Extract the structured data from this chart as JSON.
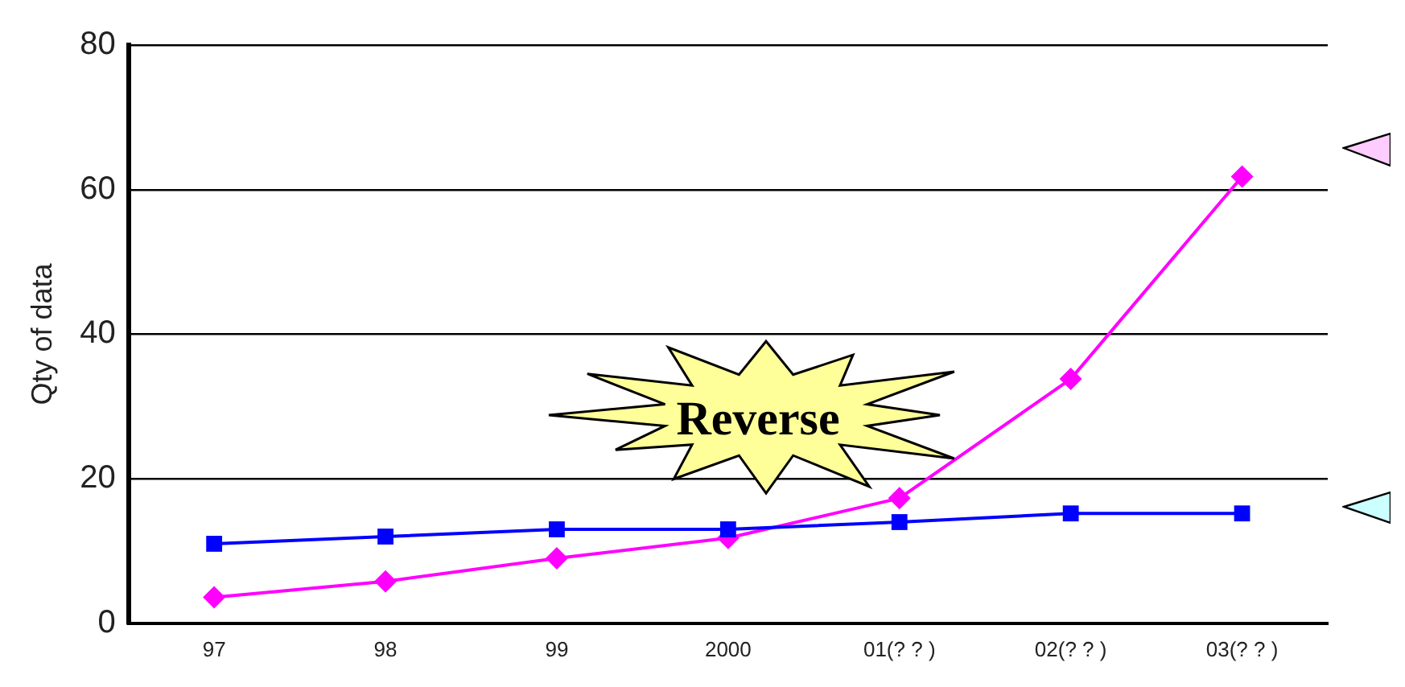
{
  "chart_data": {
    "type": "line",
    "ylabel": "Qty of data",
    "annotations": [
      "Reverse"
    ],
    "categories": [
      "97",
      "98",
      "99",
      "2000",
      "01(? ? )",
      "02(? ? )",
      "03(? ? )"
    ],
    "series": [
      {
        "color": "#0000ff",
        "marker": "square",
        "values": [
          11,
          12,
          13,
          13,
          14,
          15.2,
          15.2
        ]
      },
      {
        "color": "#ff00ff",
        "marker": "diamond",
        "values": [
          3.6,
          5.8,
          9,
          11.8,
          17.3,
          33.8,
          61.8
        ]
      }
    ],
    "ylim": [
      0,
      80
    ],
    "yticks": [
      0,
      20,
      40,
      60,
      80
    ],
    "grid": "y",
    "line_style": "solid"
  }
}
